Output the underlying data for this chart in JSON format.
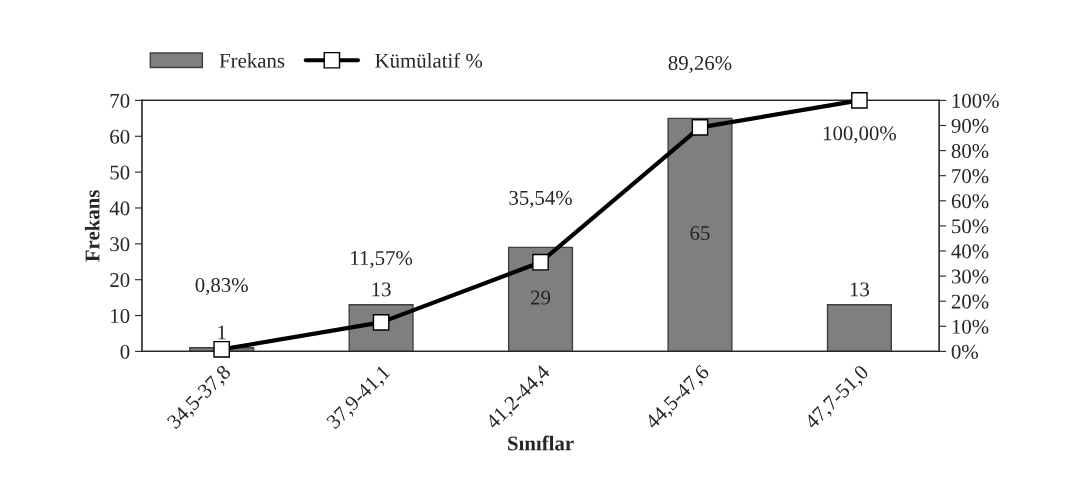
{
  "chart_data": {
    "type": "bar",
    "xlabel": "Sınıflar",
    "ylabel": "Frekans",
    "categories": [
      "34,5-37,8",
      "37,9-41,1",
      "41,2-44,4",
      "44,5-47,6",
      "47,7-51,0"
    ],
    "series": [
      {
        "name": "Frekans",
        "type": "bar",
        "color": "#7f7f7f",
        "values": [
          1,
          13,
          29,
          65,
          13
        ],
        "value_labels": [
          "1",
          "13",
          "29",
          "65",
          "13"
        ]
      },
      {
        "name": "Kümülatif %",
        "type": "line",
        "axis": "y2",
        "color": "#000000",
        "marker": "square",
        "values": [
          0.83,
          11.57,
          35.54,
          89.26,
          100
        ],
        "value_labels": [
          "0,83%",
          "11,57%",
          "35,54%",
          "89,26%",
          "100,00%"
        ]
      }
    ],
    "ylim": [
      0,
      70
    ],
    "yticks": [
      0,
      10,
      20,
      30,
      40,
      50,
      60,
      70
    ],
    "y2lim": [
      0,
      100
    ],
    "y2ticks": [
      {
        "value": 0,
        "label": "0%"
      },
      {
        "value": 10,
        "label": "10%"
      },
      {
        "value": 20,
        "label": "20%"
      },
      {
        "value": 30,
        "label": "30%"
      },
      {
        "value": 40,
        "label": "40%"
      },
      {
        "value": 50,
        "label": "50%"
      },
      {
        "value": 60,
        "label": "60%"
      },
      {
        "value": 70,
        "label": "70%"
      },
      {
        "value": 80,
        "label": "80%"
      },
      {
        "value": 90,
        "label": "90%"
      },
      {
        "value": 100,
        "label": "100%"
      }
    ],
    "grid": false,
    "legend": "top left"
  }
}
